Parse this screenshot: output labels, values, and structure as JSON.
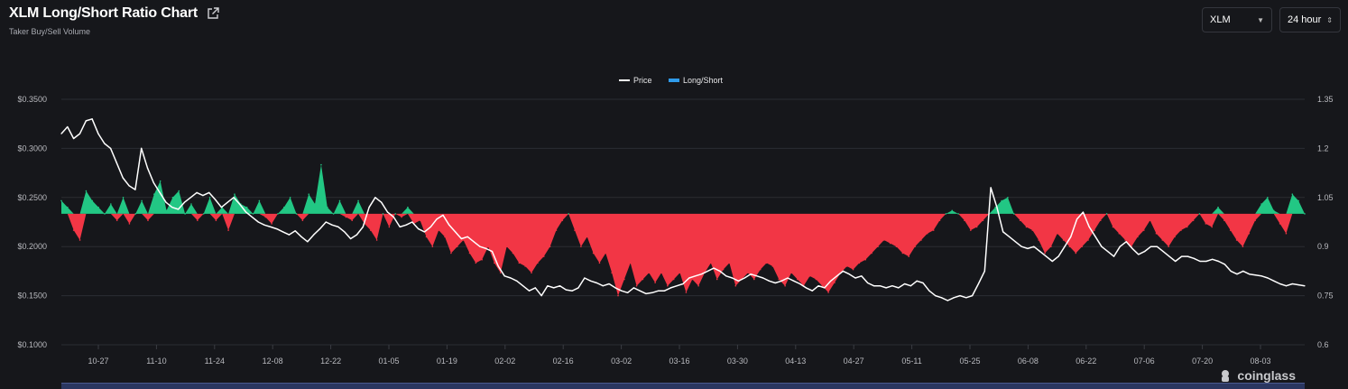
{
  "header": {
    "title": "XLM Long/Short Ratio Chart",
    "subtitle": "Taker Buy/Sell Volume"
  },
  "controls": {
    "coin": "XLM",
    "period": "24 hour"
  },
  "watermark": "coinglass",
  "colors": {
    "background": "#16171b",
    "grid": "#2b2d33",
    "price_line": "#ffffff",
    "long_fill": "#22c784",
    "short_fill": "#f23645",
    "legend_long_short": "#2f9bea"
  },
  "chart_data": {
    "type": "line",
    "legend": [
      "Price",
      "Long/Short"
    ],
    "legend_position": "top-center",
    "grid": true,
    "x_ticks": [
      "10-27",
      "11-10",
      "11-24",
      "12-08",
      "12-22",
      "01-05",
      "01-19",
      "02-02",
      "02-16",
      "03-02",
      "03-16",
      "03-30",
      "04-13",
      "04-27",
      "05-11",
      "05-25",
      "06-08",
      "06-22",
      "07-06",
      "07-20",
      "08-03"
    ],
    "y_left": {
      "ticks": [
        "$0.3500",
        "$0.3000",
        "$0.2500",
        "$0.2000",
        "$0.1500",
        "$0.1000"
      ],
      "range": [
        0.1,
        0.35
      ]
    },
    "y_right": {
      "ticks": [
        "1.35",
        "1.2",
        "1.05",
        "0.9",
        "0.75",
        "0.6"
      ],
      "range": [
        0.6,
        1.35
      ]
    },
    "baseline_ratio": 1.0,
    "series": [
      {
        "name": "Price",
        "axis": "left",
        "values": [
          0.315,
          0.322,
          0.31,
          0.315,
          0.328,
          0.33,
          0.315,
          0.305,
          0.3,
          0.285,
          0.27,
          0.262,
          0.258,
          0.3,
          0.28,
          0.265,
          0.255,
          0.245,
          0.24,
          0.238,
          0.245,
          0.25,
          0.255,
          0.252,
          0.255,
          0.248,
          0.24,
          0.245,
          0.25,
          0.243,
          0.235,
          0.23,
          0.225,
          0.222,
          0.22,
          0.218,
          0.215,
          0.212,
          0.216,
          0.21,
          0.205,
          0.212,
          0.218,
          0.225,
          0.222,
          0.22,
          0.215,
          0.208,
          0.212,
          0.22,
          0.24,
          0.25,
          0.245,
          0.235,
          0.23,
          0.22,
          0.222,
          0.225,
          0.218,
          0.215,
          0.22,
          0.228,
          0.232,
          0.222,
          0.215,
          0.208,
          0.21,
          0.205,
          0.2,
          0.198,
          0.195,
          0.18,
          0.17,
          0.168,
          0.165,
          0.16,
          0.155,
          0.158,
          0.15,
          0.16,
          0.158,
          0.16,
          0.156,
          0.155,
          0.158,
          0.168,
          0.165,
          0.163,
          0.16,
          0.162,
          0.158,
          0.155,
          0.153,
          0.158,
          0.155,
          0.152,
          0.153,
          0.155,
          0.155,
          0.158,
          0.16,
          0.162,
          0.168,
          0.17,
          0.172,
          0.175,
          0.178,
          0.175,
          0.17,
          0.168,
          0.165,
          0.168,
          0.172,
          0.17,
          0.168,
          0.165,
          0.163,
          0.165,
          0.168,
          0.165,
          0.162,
          0.158,
          0.155,
          0.16,
          0.158,
          0.165,
          0.17,
          0.175,
          0.172,
          0.168,
          0.17,
          0.163,
          0.16,
          0.16,
          0.158,
          0.16,
          0.158,
          0.162,
          0.16,
          0.165,
          0.163,
          0.155,
          0.15,
          0.148,
          0.145,
          0.148,
          0.15,
          0.148,
          0.15,
          0.162,
          0.175,
          0.26,
          0.24,
          0.215,
          0.21,
          0.205,
          0.2,
          0.198,
          0.2,
          0.195,
          0.19,
          0.185,
          0.19,
          0.2,
          0.21,
          0.228,
          0.235,
          0.22,
          0.21,
          0.2,
          0.195,
          0.19,
          0.2,
          0.205,
          0.198,
          0.192,
          0.195,
          0.2,
          0.2,
          0.195,
          0.19,
          0.185,
          0.19,
          0.19,
          0.188,
          0.185,
          0.185,
          0.187,
          0.185,
          0.182,
          0.175,
          0.172,
          0.175,
          0.172,
          0.171,
          0.17,
          0.168,
          0.165,
          0.162,
          0.16,
          0.162,
          0.161,
          0.16
        ]
      },
      {
        "name": "Long/Short",
        "axis": "right",
        "values": [
          1.04,
          1.02,
          0.95,
          0.92,
          1.07,
          1.04,
          1.02,
          1.0,
          1.03,
          0.98,
          1.05,
          0.97,
          1.0,
          1.04,
          0.98,
          1.06,
          1.1,
          1.01,
          1.05,
          1.07,
          1.0,
          1.03,
          0.98,
          1.0,
          1.05,
          0.98,
          1.02,
          0.95,
          1.06,
          1.03,
          1.02,
          1.0,
          1.04,
          0.99,
          0.97,
          1.0,
          1.02,
          1.05,
          1.0,
          0.98,
          1.06,
          1.03,
          1.15,
          1.02,
          1.0,
          1.04,
          0.99,
          0.98,
          1.04,
          0.97,
          0.95,
          0.92,
          1.0,
          0.96,
          1.0,
          0.99,
          1.02,
          0.97,
          0.98,
          0.93,
          0.9,
          0.95,
          0.93,
          0.88,
          0.9,
          0.92,
          0.88,
          0.85,
          0.86,
          0.9,
          0.85,
          0.82,
          0.9,
          0.88,
          0.85,
          0.84,
          0.82,
          0.85,
          0.87,
          0.9,
          0.95,
          0.98,
          1.0,
          0.95,
          0.9,
          0.93,
          0.88,
          0.85,
          0.88,
          0.82,
          0.75,
          0.8,
          0.85,
          0.78,
          0.8,
          0.82,
          0.79,
          0.82,
          0.78,
          0.8,
          0.82,
          0.76,
          0.8,
          0.78,
          0.82,
          0.85,
          0.8,
          0.83,
          0.85,
          0.78,
          0.8,
          0.82,
          0.8,
          0.83,
          0.85,
          0.84,
          0.8,
          0.78,
          0.82,
          0.8,
          0.78,
          0.81,
          0.8,
          0.78,
          0.76,
          0.79,
          0.82,
          0.84,
          0.83,
          0.85,
          0.86,
          0.88,
          0.9,
          0.92,
          0.91,
          0.9,
          0.88,
          0.87,
          0.9,
          0.92,
          0.94,
          0.95,
          0.98,
          1.0,
          1.01,
          1.0,
          0.98,
          0.95,
          0.96,
          0.98,
          1.0,
          1.02,
          1.04,
          1.05,
          1.0,
          0.98,
          0.96,
          0.95,
          0.92,
          0.88,
          0.9,
          0.94,
          0.92,
          0.9,
          0.88,
          0.9,
          0.92,
          0.95,
          0.98,
          1.0,
          0.96,
          0.94,
          0.92,
          0.9,
          0.93,
          0.95,
          0.98,
          0.94,
          0.92,
          0.9,
          0.93,
          0.95,
          0.96,
          0.98,
          1.0,
          0.97,
          0.96,
          1.02,
          0.98,
          0.95,
          0.92,
          0.9,
          0.94,
          0.98,
          1.03,
          1.05,
          1.01,
          0.97,
          0.94,
          1.06,
          1.04,
          1.0
        ]
      }
    ]
  }
}
